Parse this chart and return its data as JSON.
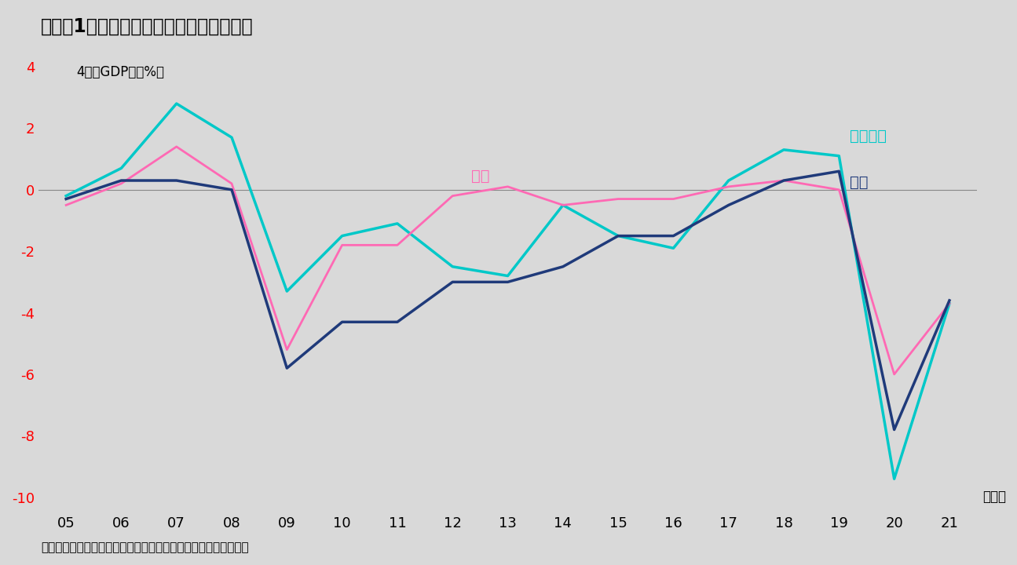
{
  "title": "（図表1）　日米ユーロ圏の需給ギャップ",
  "ylabel": "4　（GDP比、%）",
  "xlabel_unit": "（年）",
  "source": "（出所）米国議会予算局、欧州委員会、日本内閣府、インベスコ",
  "background_color": "#d9d9d9",
  "years": [
    2005,
    2006,
    2007,
    2008,
    2009,
    2010,
    2011,
    2012,
    2013,
    2014,
    2015,
    2016,
    2017,
    2018,
    2019,
    2020,
    2021
  ],
  "japan": [
    -0.5,
    0.2,
    1.4,
    0.2,
    -5.2,
    -1.8,
    -1.8,
    -0.2,
    0.1,
    -0.5,
    -0.3,
    -0.3,
    0.1,
    0.3,
    0.0,
    -6.0,
    -3.7
  ],
  "usa": [
    -0.3,
    0.3,
    0.3,
    0.0,
    -5.8,
    -4.3,
    -4.3,
    -3.0,
    -3.0,
    -2.5,
    -1.5,
    -1.5,
    -0.5,
    0.3,
    0.6,
    -7.8,
    -3.6
  ],
  "euro": [
    -0.2,
    0.7,
    2.8,
    1.7,
    -3.3,
    -1.5,
    -1.1,
    -2.5,
    -2.8,
    -0.5,
    -1.5,
    -1.9,
    0.3,
    1.3,
    1.1,
    -9.4,
    -3.7
  ],
  "japan_color": "#ff69b4",
  "usa_color": "#1f3a7a",
  "euro_color": "#00c8c8",
  "japan_label": "日本",
  "usa_label": "米国",
  "euro_label": "ユーロ圏",
  "ylim": [
    -10.5,
    4.5
  ],
  "yticks": [
    4,
    2,
    0,
    -2,
    -4,
    -6,
    -8,
    -10
  ],
  "xtick_labels": [
    "05",
    "06",
    "07",
    "08",
    "09",
    "10",
    "11",
    "12",
    "13",
    "14",
    "15",
    "16",
    "17",
    "18",
    "19",
    "20",
    "21"
  ],
  "linewidth": 2.0
}
